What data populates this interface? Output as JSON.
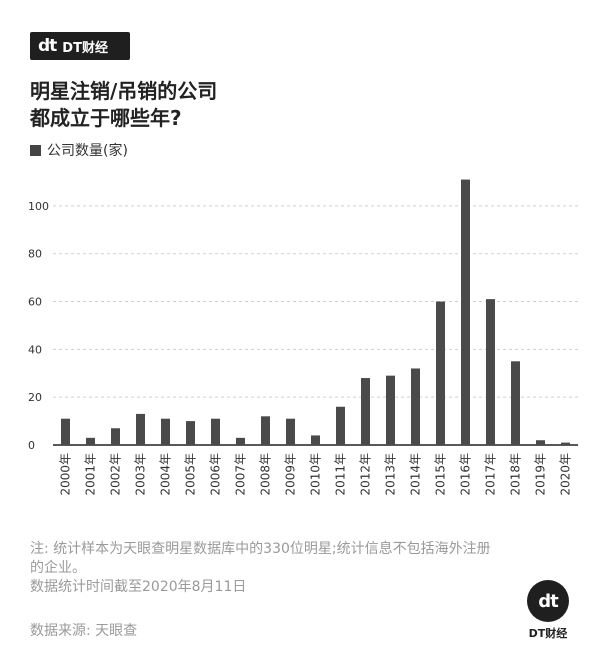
{
  "brand": {
    "logo": "dt",
    "name": "DT财经"
  },
  "title_line1": "明星注销/吊销的公司",
  "title_line2": "都成立于哪些年?",
  "legend_label": "公司数量(家)",
  "notes": {
    "line1": "注: 统计样本为天眼查明星数据库中的330位明星;统计信息不包括海外注册",
    "line2": "的企业。",
    "line3": "数据统计时间截至2020年8月11日"
  },
  "source": "数据来源: 天眼查",
  "footer_logo": {
    "logo": "dt",
    "name": "DT财经"
  },
  "colors": {
    "bar": "#4a4a4a",
    "grid": "#cfcfcf",
    "axis": "#222222",
    "text": "#333333",
    "note": "#9a9a9a"
  },
  "chart_data": {
    "type": "bar",
    "categories": [
      "2000年",
      "2001年",
      "2002年",
      "2003年",
      "2004年",
      "2005年",
      "2006年",
      "2007年",
      "2008年",
      "2009年",
      "2010年",
      "2011年",
      "2012年",
      "2013年",
      "2014年",
      "2015年",
      "2016年",
      "2017年",
      "2018年",
      "2019年",
      "2020年"
    ],
    "series": [
      {
        "name": "公司数量(家)",
        "values": [
          11,
          3,
          7,
          13,
          11,
          10,
          11,
          3,
          12,
          11,
          4,
          16,
          28,
          29,
          32,
          60,
          111,
          61,
          35,
          2,
          1
        ]
      }
    ],
    "yticks": [
      0,
      20,
      40,
      60,
      80,
      100
    ],
    "ylim": [
      0,
      115
    ],
    "grid": true,
    "grid_style": "dashed"
  }
}
